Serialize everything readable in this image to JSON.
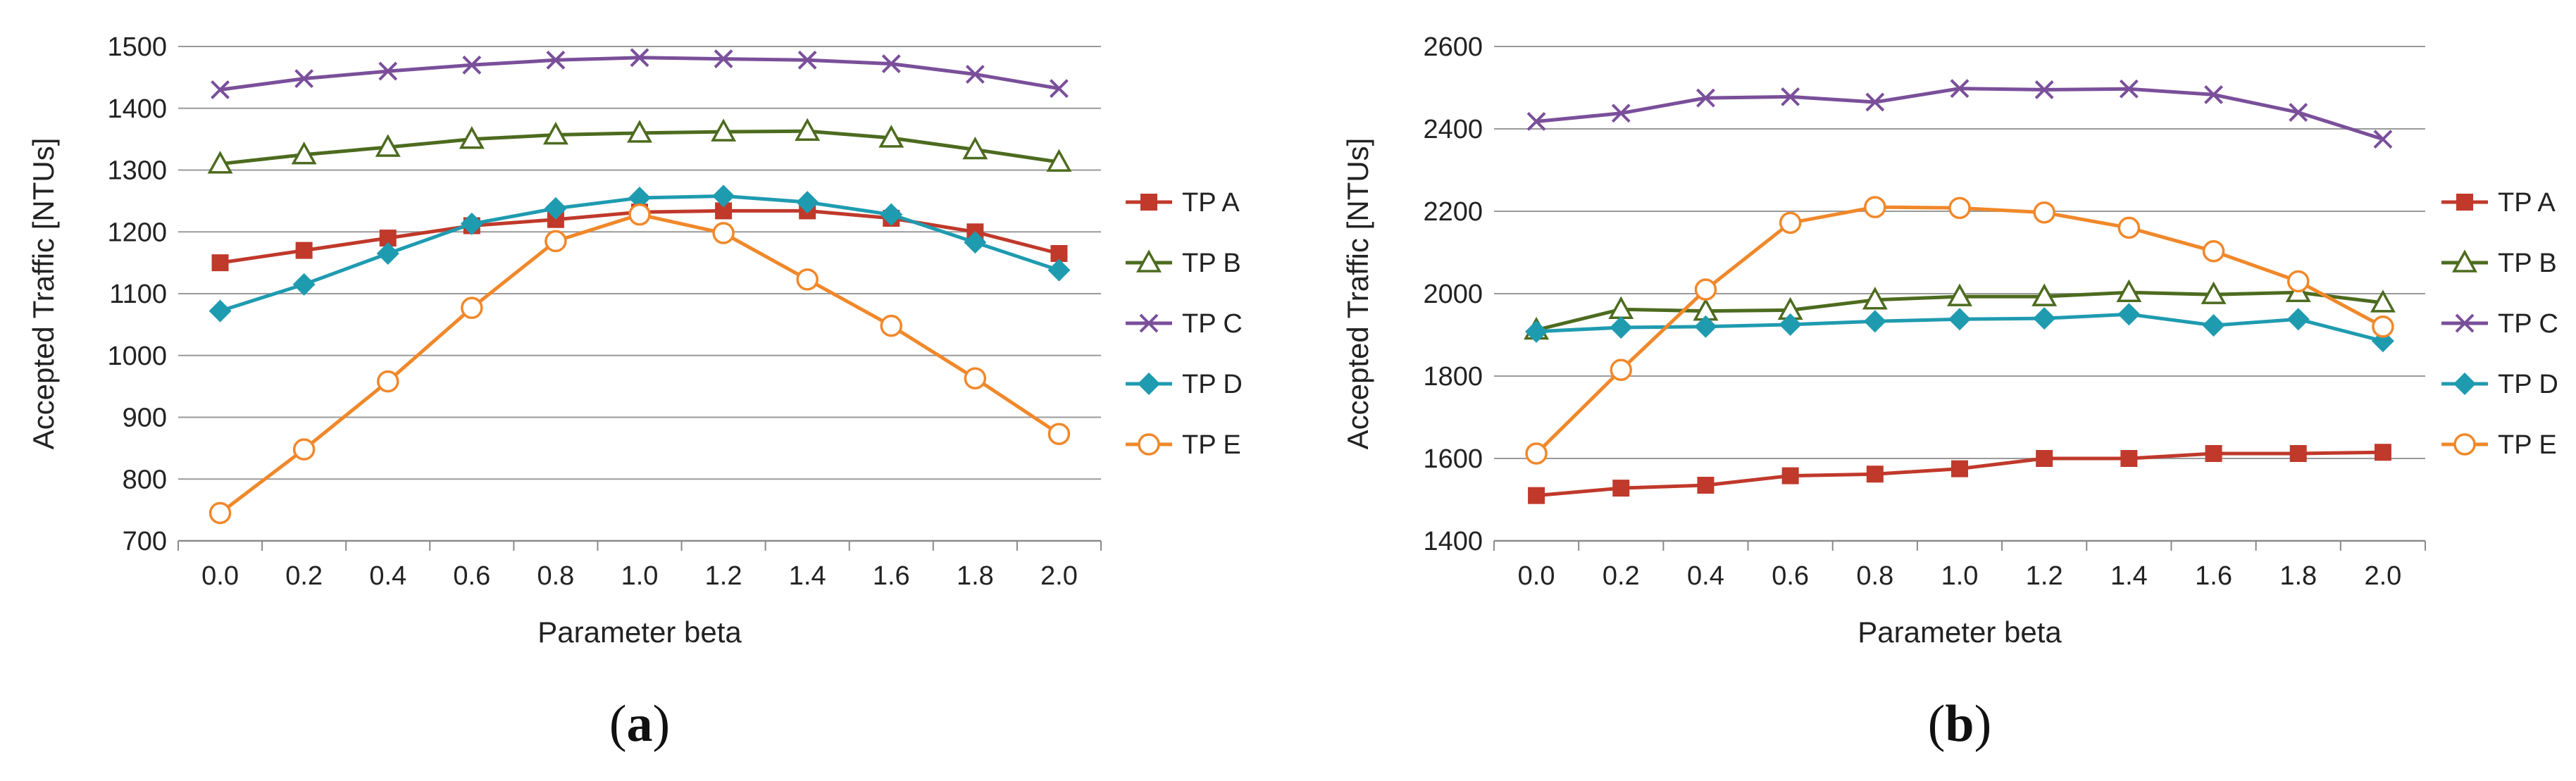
{
  "chart_data": [
    {
      "type": "line",
      "panel": "a",
      "caption_open": "(",
      "caption_letter": "a",
      "caption_close": ")",
      "xlabel": "Parameter beta",
      "ylabel": "Accepted Traffic [NTUs]",
      "x": [
        "0.0",
        "0.2",
        "0.4",
        "0.6",
        "0.8",
        "1.0",
        "1.2",
        "1.4",
        "1.6",
        "1.8",
        "2.0"
      ],
      "ylim": [
        700,
        1500
      ],
      "yticks": [
        700,
        800,
        900,
        1000,
        1100,
        1200,
        1300,
        1400,
        1500
      ],
      "grid": true,
      "legend_position": "right",
      "series": [
        {
          "name": "TP A",
          "color": "#c0392b",
          "marker": "square",
          "values": [
            1150,
            1170,
            1190,
            1210,
            1220,
            1232,
            1234,
            1234,
            1222,
            1200,
            1165
          ]
        },
        {
          "name": "TP B",
          "color": "#4d6b1f",
          "marker": "triangle-open",
          "values": [
            1310,
            1325,
            1337,
            1350,
            1357,
            1360,
            1362,
            1363,
            1352,
            1333,
            1313
          ]
        },
        {
          "name": "TP C",
          "color": "#7a4f9a",
          "marker": "x",
          "values": [
            1430,
            1448,
            1460,
            1470,
            1478,
            1482,
            1480,
            1478,
            1472,
            1455,
            1432
          ]
        },
        {
          "name": "TP D",
          "color": "#1f9bb0",
          "marker": "diamond",
          "values": [
            1072,
            1115,
            1165,
            1213,
            1238,
            1255,
            1258,
            1248,
            1228,
            1183,
            1138
          ]
        },
        {
          "name": "TP E",
          "color": "#f0882a",
          "marker": "circle-open",
          "values": [
            745,
            848,
            958,
            1077,
            1185,
            1228,
            1198,
            1123,
            1048,
            963,
            873
          ]
        }
      ]
    },
    {
      "type": "line",
      "panel": "b",
      "caption_open": "(",
      "caption_letter": "b",
      "caption_close": ")",
      "xlabel": "Parameter beta",
      "ylabel": "Accepted Traffic [NTUs]",
      "x": [
        "0.0",
        "0.2",
        "0.4",
        "0.6",
        "0.8",
        "1.0",
        "1.2",
        "1.4",
        "1.6",
        "1.8",
        "2.0"
      ],
      "ylim": [
        1400,
        2600
      ],
      "yticks": [
        1400,
        1600,
        1800,
        2000,
        2200,
        2400,
        2600
      ],
      "grid": true,
      "legend_position": "right",
      "series": [
        {
          "name": "TP A",
          "color": "#c0392b",
          "marker": "square",
          "values": [
            1510,
            1528,
            1535,
            1558,
            1562,
            1575,
            1600,
            1600,
            1612,
            1612,
            1615
          ]
        },
        {
          "name": "TP B",
          "color": "#4d6b1f",
          "marker": "triangle-open",
          "values": [
            1912,
            1962,
            1958,
            1960,
            1985,
            1993,
            1993,
            2003,
            1998,
            2003,
            1978
          ]
        },
        {
          "name": "TP C",
          "color": "#7a4f9a",
          "marker": "x",
          "values": [
            2418,
            2438,
            2475,
            2478,
            2465,
            2498,
            2495,
            2497,
            2483,
            2440,
            2375
          ]
        },
        {
          "name": "TP D",
          "color": "#1f9bb0",
          "marker": "diamond",
          "values": [
            1908,
            1918,
            1920,
            1925,
            1933,
            1938,
            1940,
            1950,
            1923,
            1938,
            1885
          ]
        },
        {
          "name": "TP E",
          "color": "#f0882a",
          "marker": "circle-open",
          "values": [
            1612,
            1815,
            2010,
            2172,
            2210,
            2208,
            2197,
            2160,
            2103,
            2030,
            1920
          ]
        }
      ]
    }
  ]
}
